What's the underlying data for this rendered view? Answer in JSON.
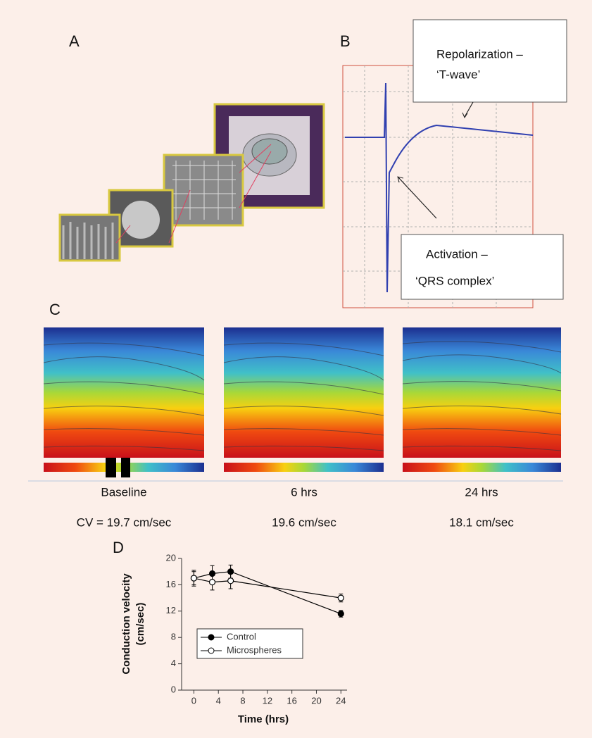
{
  "panel_labels": [
    "A",
    "B",
    "C",
    "D"
  ],
  "panel_b": {
    "repolarization": [
      "Repolarization –",
      "‘T-wave’"
    ],
    "activation": [
      "Activation –",
      "‘QRS complex’"
    ]
  },
  "panel_c": {
    "conditions": [
      "Baseline",
      "6 hrs",
      "24 hrs"
    ],
    "velocities": [
      "CV = 19.7 cm/sec",
      "19.6 cm/sec",
      "18.1 cm/sec"
    ]
  },
  "chart_data": {
    "type": "line",
    "x": [
      0,
      3,
      6,
      24
    ],
    "series": [
      {
        "name": "Control",
        "color": "#000000",
        "marker": "filled",
        "values": [
          17,
          17.7,
          18,
          11.6
        ],
        "errors": [
          1,
          1.2,
          1,
          0.5
        ]
      },
      {
        "name": "Microspheres",
        "color": "#000000",
        "marker": "open",
        "values": [
          17,
          16.4,
          16.6,
          14
        ],
        "errors": [
          1.2,
          1.2,
          1.2,
          0.6
        ]
      }
    ],
    "xlabel": "Time (hrs)",
    "ylabel": [
      "Conduction velocity",
      "(cm/sec)"
    ],
    "xlim": [
      -2,
      25
    ],
    "ylim": [
      0,
      20
    ],
    "xticks": [
      0,
      4,
      8,
      12,
      16,
      20,
      24
    ],
    "yticks": [
      0,
      4,
      8,
      12,
      16,
      20
    ],
    "legend": "lower-left"
  }
}
